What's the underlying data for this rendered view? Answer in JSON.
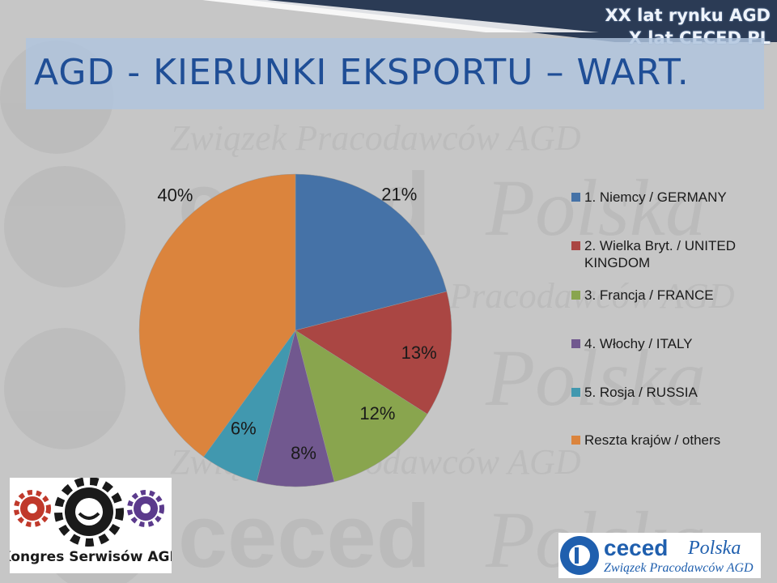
{
  "corner": {
    "line1": "XX lat rynku AGD",
    "line2": "X lat CECED PL"
  },
  "slide": {
    "title": "AGD - KIERUNKI EKSPORTU – WART."
  },
  "watermark": {
    "line1": "Związek Pracodawców AGD",
    "brand": "ceced",
    "brand2": "Polska"
  },
  "chart_data": {
    "type": "pie",
    "start_angle_deg": 0,
    "direction": "clockwise",
    "slices": [
      {
        "label": "1. Niemcy / GERMANY",
        "value": 21,
        "value_label": "21%",
        "color": "#4572a7"
      },
      {
        "label": "2. Wielka Bryt. / UNITED KINGDOM",
        "value": 13,
        "value_label": "13%",
        "color": "#aa4643"
      },
      {
        "label": "3. Francja / FRANCE",
        "value": 12,
        "value_label": "12%",
        "color": "#89a54e"
      },
      {
        "label": "4. Włochy / ITALY",
        "value": 8,
        "value_label": "8%",
        "color": "#71588f"
      },
      {
        "label": "5. Rosja / RUSSIA",
        "value": 6,
        "value_label": "6%",
        "color": "#4198af"
      },
      {
        "label": "Reszta krajów / others",
        "value": 40,
        "value_label": "40%",
        "color": "#db843d"
      }
    ],
    "legend_position": "right"
  },
  "logos": {
    "left": {
      "text": "Kongres Serwisów AGD",
      "colors": [
        "#c0392b",
        "#1a1a1a",
        "#5b3a8c"
      ]
    },
    "right": {
      "brand": "ceced",
      "brand2": "Polska",
      "subtitle": "Związek Pracodawców AGD",
      "color": "#1f5fae"
    }
  }
}
